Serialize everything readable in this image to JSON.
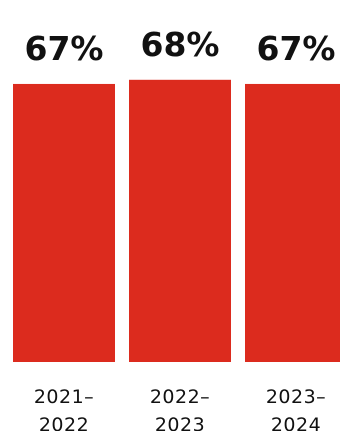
{
  "chart_data": {
    "type": "bar",
    "categories": [
      "2021–2022",
      "2022–2023",
      "2023–2024"
    ],
    "category_lines": [
      [
        "2021–",
        "2022"
      ],
      [
        "2022–",
        "2023"
      ],
      [
        "2023–",
        "2024"
      ]
    ],
    "values": [
      67,
      68,
      67
    ],
    "value_labels": [
      "67%",
      "68%",
      "67%"
    ],
    "unit": "%",
    "title": "",
    "xlabel": "",
    "ylabel": "",
    "grid": false,
    "legend": "none",
    "bar_color": "#dc2b1e",
    "text_color": "#111111",
    "background": "#ffffff"
  }
}
